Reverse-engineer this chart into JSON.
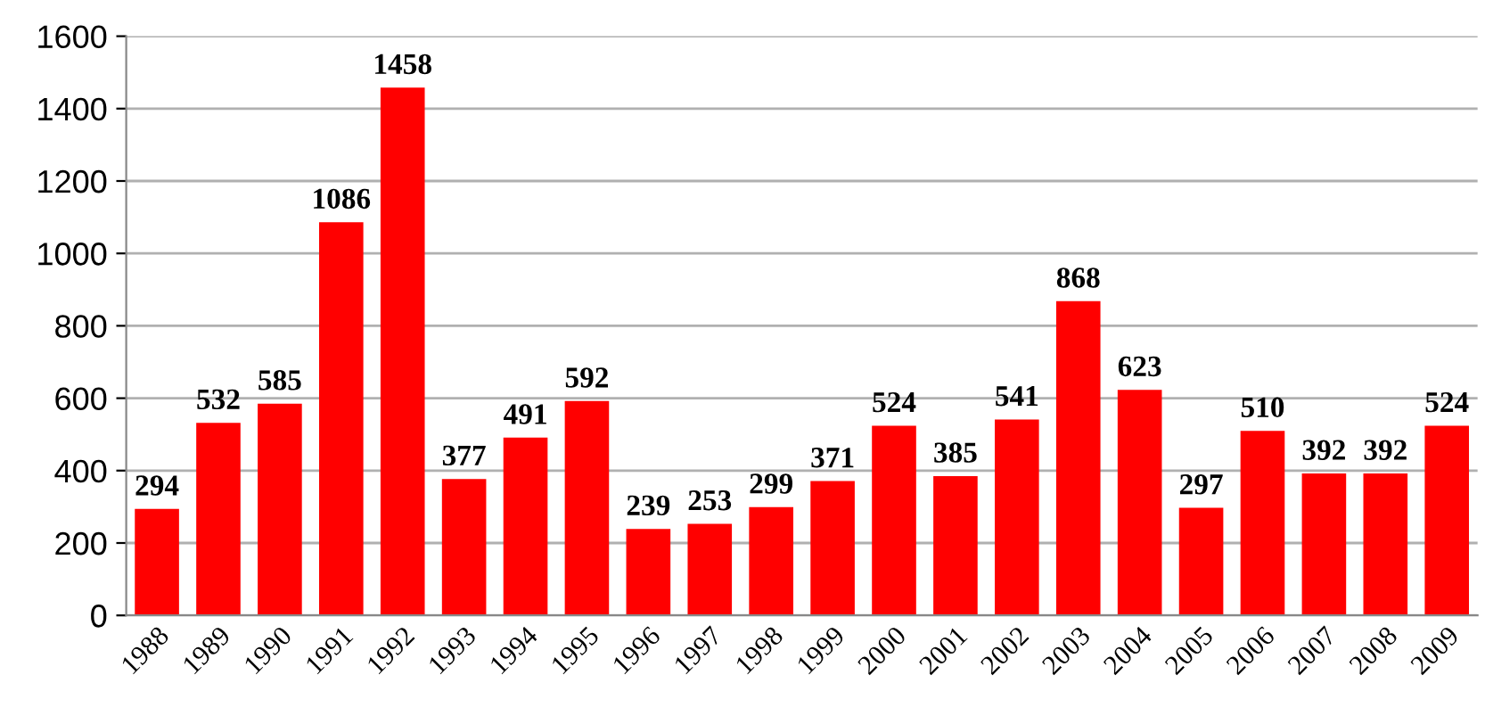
{
  "chart_data": {
    "type": "bar",
    "categories": [
      "1988",
      "1989",
      "1990",
      "1991",
      "1992",
      "1993",
      "1994",
      "1995",
      "1996",
      "1997",
      "1998",
      "1999",
      "2000",
      "2001",
      "2002",
      "2003",
      "2004",
      "2005",
      "2006",
      "2007",
      "2008",
      "2009"
    ],
    "values": [
      294,
      532,
      585,
      1086,
      1458,
      377,
      491,
      592,
      239,
      253,
      299,
      371,
      524,
      385,
      541,
      868,
      623,
      297,
      510,
      392,
      392,
      524
    ],
    "color": "#ff0000",
    "ylim": [
      0,
      1600
    ],
    "yticks": [
      0,
      200,
      400,
      600,
      800,
      1000,
      1200,
      1400,
      1600
    ],
    "grid": "y",
    "data_labels": true
  }
}
